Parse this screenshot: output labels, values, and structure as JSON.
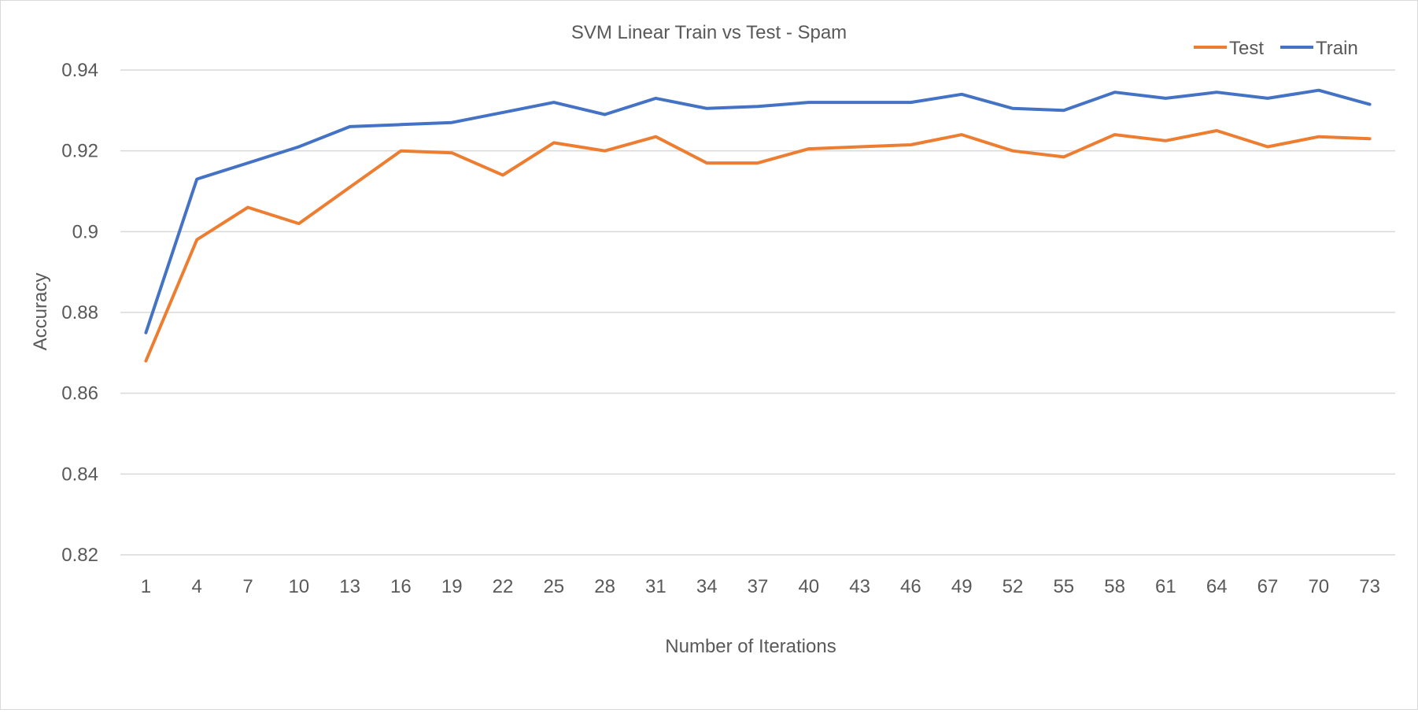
{
  "chart_data": {
    "type": "line",
    "title": "SVM Linear Train vs Test - Spam",
    "xlabel": "Number of Iterations",
    "ylabel": "Accuracy",
    "ylim": [
      0.82,
      0.94
    ],
    "yticks": [
      "0.82",
      "0.84",
      "0.86",
      "0.88",
      "0.9",
      "0.92",
      "0.94"
    ],
    "ytick_values": [
      0.82,
      0.84,
      0.86,
      0.88,
      0.9,
      0.92,
      0.94
    ],
    "grid": true,
    "legend_position": "top-right",
    "categories": [
      "1",
      "4",
      "7",
      "10",
      "13",
      "16",
      "19",
      "22",
      "25",
      "28",
      "31",
      "34",
      "37",
      "40",
      "43",
      "46",
      "49",
      "52",
      "55",
      "58",
      "61",
      "64",
      "67",
      "70",
      "73"
    ],
    "series": [
      {
        "name": "Test",
        "color": "#ed7d31",
        "values": [
          0.868,
          0.898,
          0.906,
          0.902,
          0.911,
          0.92,
          0.9195,
          0.914,
          0.922,
          0.92,
          0.9235,
          0.917,
          0.917,
          0.9205,
          0.921,
          0.9215,
          0.924,
          0.92,
          0.9185,
          0.924,
          0.9225,
          0.925,
          0.921,
          0.9235,
          0.923
        ]
      },
      {
        "name": "Train",
        "color": "#4472c4",
        "values": [
          0.875,
          0.913,
          0.917,
          0.921,
          0.926,
          0.9265,
          0.927,
          0.9295,
          0.932,
          0.929,
          0.933,
          0.9305,
          0.931,
          0.932,
          0.932,
          0.932,
          0.934,
          0.9305,
          0.93,
          0.9345,
          0.933,
          0.9345,
          0.933,
          0.935,
          0.9315
        ]
      }
    ]
  }
}
